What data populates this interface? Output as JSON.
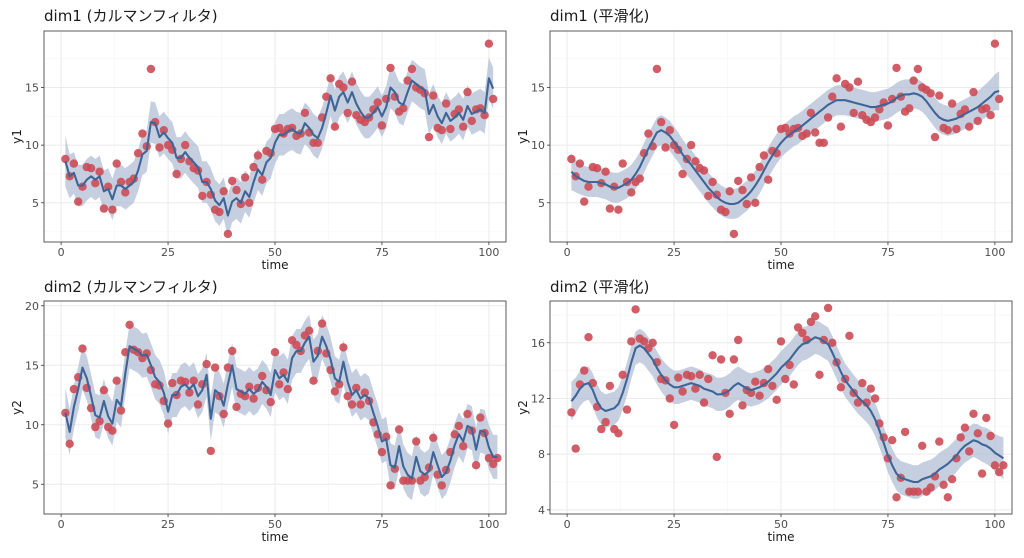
{
  "colors": {
    "band": "#a9b8d2",
    "line": "#3f6597",
    "points": "#cc4b55"
  },
  "chart_data": [
    {
      "type": "line",
      "title": "dim1 (カルマンフィルタ)",
      "xlabel": "time",
      "ylabel": "y1",
      "xlim": [
        -4,
        104
      ],
      "ylim": [
        1.6,
        19.9
      ],
      "xticks": [
        0,
        25,
        50,
        75,
        100
      ],
      "yticks": [
        5,
        10,
        15
      ],
      "x_start": 1,
      "observed": [
        8.8,
        7.3,
        8.4,
        5.1,
        6.4,
        8.1,
        8.0,
        6.7,
        7.7,
        4.5,
        6.4,
        4.4,
        8.4,
        6.8,
        5.9,
        6.8,
        7.1,
        9.3,
        11.0,
        9.9,
        16.6,
        12.0,
        9.8,
        11.3,
        10.0,
        9.6,
        7.5,
        8.8,
        10.0,
        8.6,
        8.0,
        7.8,
        5.6,
        6.8,
        5.7,
        4.4,
        4.2,
        6.0,
        2.3,
        6.9,
        6.1,
        4.9,
        7.2,
        5.0,
        8.1,
        9.1,
        7.0,
        9.5,
        9.3,
        11.4,
        11.5,
        11.0,
        11.4,
        11.5,
        10.8,
        11.0,
        12.8,
        11.1,
        10.2,
        10.2,
        12.4,
        14.2,
        15.8,
        11.6,
        15.3,
        15.0,
        12.8,
        15.5,
        12.6,
        12.2,
        12.0,
        12.4,
        13.1,
        13.7,
        11.7,
        14.0,
        16.7,
        14.2,
        12.9,
        13.2,
        15.6,
        16.6,
        15.0,
        14.8,
        14.5,
        10.7,
        14.3,
        11.5,
        11.3,
        13.6,
        11.4,
        12.7,
        13.1,
        11.6,
        14.6,
        12.1,
        13.1,
        13.2,
        12.6,
        18.8,
        14.0
      ],
      "filtered": [
        8.6,
        7.3,
        7.6,
        6.5,
        6.5,
        7.0,
        7.3,
        7.0,
        7.3,
        6.0,
        6.2,
        5.3,
        6.5,
        6.5,
        6.2,
        6.5,
        6.8,
        7.8,
        9.2,
        9.5,
        12.0,
        11.9,
        10.7,
        11.1,
        10.6,
        10.2,
        8.9,
        8.9,
        9.4,
        8.9,
        8.5,
        8.1,
        6.8,
        6.8,
        6.2,
        5.2,
        4.8,
        5.4,
        3.9,
        5.1,
        5.4,
        5.0,
        6.0,
        5.5,
        6.8,
        7.9,
        7.4,
        8.5,
        8.9,
        10.2,
        10.9,
        10.9,
        11.2,
        11.4,
        11.1,
        11.0,
        11.9,
        11.5,
        10.9,
        10.6,
        11.5,
        12.8,
        14.3,
        13.0,
        14.2,
        14.6,
        13.7,
        14.6,
        13.6,
        12.9,
        12.4,
        12.4,
        12.8,
        13.3,
        12.5,
        13.3,
        15.0,
        14.6,
        13.7,
        13.5,
        14.6,
        15.6,
        15.3,
        15.0,
        14.8,
        12.7,
        13.5,
        12.5,
        11.9,
        12.8,
        12.1,
        12.4,
        12.8,
        12.2,
        13.4,
        12.7,
        12.9,
        13.1,
        12.8,
        15.8,
        14.9
      ],
      "band_halfwidth": [
        2.2,
        1.9,
        1.8,
        1.8,
        1.8,
        1.8,
        1.8,
        1.8,
        1.8,
        1.8,
        1.8,
        1.8,
        1.8,
        1.8,
        1.8,
        1.8,
        1.8,
        1.8,
        1.8,
        1.8,
        1.8,
        1.8,
        1.8,
        1.8,
        1.8,
        1.8,
        1.8,
        1.8,
        1.8,
        1.8,
        1.8,
        1.8,
        1.8,
        1.8,
        1.8,
        1.8,
        1.8,
        1.8,
        1.8,
        1.8,
        1.8,
        1.8,
        1.8,
        1.8,
        1.8,
        1.8,
        1.8,
        1.8,
        1.8,
        1.8,
        1.8,
        1.8,
        1.8,
        1.8,
        1.8,
        1.8,
        1.8,
        1.8,
        1.8,
        1.8,
        1.8,
        1.8,
        1.8,
        1.8,
        1.8,
        1.8,
        1.8,
        1.8,
        1.8,
        1.8,
        1.8,
        1.8,
        1.8,
        1.8,
        1.8,
        1.8,
        1.8,
        1.8,
        1.8,
        1.8,
        1.8,
        1.8,
        1.8,
        1.8,
        1.8,
        1.8,
        1.8,
        1.8,
        1.8,
        1.8,
        1.8,
        1.8,
        1.8,
        1.8,
        1.8,
        1.8,
        1.8,
        1.8,
        1.8,
        1.8,
        1.8
      ]
    },
    {
      "type": "line",
      "title": "dim1 (平滑化)",
      "xlabel": "time",
      "ylabel": "y1",
      "xlim": [
        -4,
        104
      ],
      "ylim": [
        1.6,
        19.9
      ],
      "xticks": [
        0,
        25,
        50,
        75,
        100
      ],
      "yticks": [
        5,
        10,
        15
      ],
      "x_start": 1,
      "observed": [
        8.8,
        7.3,
        8.4,
        5.1,
        6.4,
        8.1,
        8.0,
        6.7,
        7.7,
        4.5,
        6.4,
        4.4,
        8.4,
        6.8,
        5.9,
        6.8,
        7.1,
        9.3,
        11.0,
        9.9,
        16.6,
        12.0,
        9.8,
        11.3,
        10.0,
        9.6,
        7.5,
        8.8,
        10.0,
        8.6,
        8.0,
        7.8,
        5.6,
        6.8,
        5.7,
        4.4,
        4.2,
        6.0,
        2.3,
        6.9,
        6.1,
        4.9,
        7.2,
        5.0,
        8.1,
        9.1,
        7.0,
        9.5,
        9.3,
        11.4,
        11.5,
        11.0,
        11.4,
        11.5,
        10.8,
        11.0,
        12.8,
        11.1,
        10.2,
        10.2,
        12.4,
        14.2,
        15.8,
        11.6,
        15.3,
        15.0,
        12.8,
        15.5,
        12.6,
        12.2,
        12.0,
        12.4,
        13.1,
        13.7,
        11.7,
        14.0,
        16.7,
        14.2,
        12.9,
        13.2,
        15.6,
        16.6,
        15.0,
        14.8,
        14.5,
        10.7,
        14.3,
        11.5,
        11.3,
        13.6,
        11.4,
        12.7,
        13.1,
        11.6,
        14.6,
        12.1,
        13.1,
        13.2,
        12.6,
        18.8,
        14.0
      ],
      "smoothed": [
        7.7,
        7.3,
        7.1,
        6.9,
        6.8,
        6.8,
        6.8,
        6.7,
        6.6,
        6.4,
        6.3,
        6.3,
        6.5,
        6.7,
        7.0,
        7.5,
        8.1,
        8.9,
        9.7,
        10.4,
        11.1,
        11.3,
        11.1,
        10.8,
        10.3,
        9.8,
        9.2,
        8.7,
        8.3,
        7.8,
        7.3,
        6.8,
        6.3,
        5.9,
        5.5,
        5.2,
        5.0,
        4.9,
        4.9,
        5.0,
        5.3,
        5.6,
        6.0,
        6.5,
        7.1,
        7.8,
        8.5,
        9.1,
        9.7,
        10.2,
        10.6,
        10.9,
        11.2,
        11.4,
        11.7,
        12.0,
        12.3,
        12.6,
        12.9,
        13.2,
        13.5,
        13.7,
        13.9,
        13.9,
        13.9,
        13.8,
        13.7,
        13.6,
        13.5,
        13.4,
        13.3,
        13.3,
        13.4,
        13.5,
        13.6,
        13.8,
        14.1,
        14.3,
        14.4,
        14.4,
        14.5,
        14.4,
        14.2,
        13.8,
        13.3,
        12.8,
        12.4,
        12.2,
        12.1,
        12.2,
        12.3,
        12.5,
        12.7,
        12.9,
        13.1,
        13.3,
        13.6,
        13.9,
        14.2,
        14.6,
        14.7
      ],
      "band_halfwidth": [
        1.6,
        1.4,
        1.35,
        1.3,
        1.3,
        1.3,
        1.3,
        1.3,
        1.3,
        1.3,
        1.3,
        1.3,
        1.3,
        1.3,
        1.3,
        1.3,
        1.3,
        1.3,
        1.3,
        1.3,
        1.3,
        1.3,
        1.3,
        1.3,
        1.3,
        1.3,
        1.3,
        1.3,
        1.3,
        1.3,
        1.3,
        1.3,
        1.3,
        1.3,
        1.3,
        1.3,
        1.3,
        1.3,
        1.3,
        1.3,
        1.3,
        1.3,
        1.3,
        1.3,
        1.3,
        1.3,
        1.3,
        1.3,
        1.3,
        1.3,
        1.3,
        1.3,
        1.3,
        1.3,
        1.3,
        1.3,
        1.3,
        1.3,
        1.3,
        1.3,
        1.3,
        1.3,
        1.3,
        1.3,
        1.3,
        1.3,
        1.3,
        1.3,
        1.3,
        1.3,
        1.3,
        1.3,
        1.3,
        1.3,
        1.3,
        1.3,
        1.3,
        1.3,
        1.3,
        1.3,
        1.3,
        1.3,
        1.3,
        1.3,
        1.3,
        1.3,
        1.3,
        1.3,
        1.3,
        1.3,
        1.3,
        1.3,
        1.3,
        1.3,
        1.35,
        1.4,
        1.4,
        1.45,
        1.5,
        1.55,
        1.7
      ]
    },
    {
      "type": "line",
      "title": "dim2 (カルマンフィルタ)",
      "xlabel": "time",
      "ylabel": "y2",
      "xlim": [
        -4,
        104
      ],
      "ylim": [
        2.5,
        20.4
      ],
      "xticks": [
        0,
        25,
        50,
        75,
        100
      ],
      "yticks": [
        5,
        10,
        15,
        20
      ],
      "x_start": 1,
      "observed": [
        11.0,
        8.4,
        13.0,
        14.0,
        16.4,
        13.1,
        11.4,
        9.8,
        10.3,
        12.9,
        9.8,
        9.5,
        13.7,
        11.2,
        16.1,
        18.4,
        16.3,
        16.1,
        15.6,
        16.0,
        14.6,
        13.4,
        13.3,
        12.0,
        10.1,
        13.5,
        12.5,
        13.7,
        13.6,
        12.7,
        13.7,
        11.7,
        13.4,
        15.1,
        7.8,
        14.8,
        12.4,
        10.9,
        14.8,
        16.2,
        11.5,
        12.6,
        12.4,
        13.2,
        12.2,
        13.1,
        14.1,
        12.9,
        11.9,
        16.1,
        13.4,
        14.4,
        13.0,
        17.1,
        16.7,
        16.2,
        17.5,
        17.9,
        13.7,
        16.2,
        18.5,
        16.0,
        14.6,
        12.8,
        13.4,
        16.5,
        12.4,
        11.7,
        13.1,
        11.7,
        12.7,
        12.0,
        10.2,
        9.2,
        7.7,
        9.0,
        4.9,
        6.3,
        9.6,
        5.3,
        5.3,
        5.3,
        8.6,
        5.3,
        5.6,
        6.4,
        8.9,
        5.8,
        4.9,
        6.2,
        7.7,
        9.2,
        9.9,
        8.2,
        10.9,
        9.5,
        6.6,
        10.6,
        9.3,
        7.2,
        6.7,
        7.2
      ],
      "filtered": [
        11.0,
        9.4,
        11.5,
        13.0,
        14.8,
        13.9,
        12.4,
        10.8,
        10.6,
        12.0,
        10.7,
        10.1,
        12.1,
        11.6,
        14.3,
        16.6,
        16.4,
        16.2,
        15.8,
        15.9,
        15.0,
        14.0,
        13.6,
        12.7,
        11.1,
        12.5,
        12.5,
        13.2,
        13.4,
        13.0,
        13.4,
        12.4,
        12.9,
        14.2,
        10.5,
        12.9,
        12.6,
        11.6,
        13.4,
        15.0,
        13.0,
        12.8,
        12.6,
        13.0,
        12.6,
        12.9,
        13.6,
        13.2,
        12.5,
        14.6,
        13.9,
        14.2,
        13.6,
        15.6,
        16.2,
        16.2,
        16.9,
        17.4,
        15.3,
        15.8,
        17.4,
        16.6,
        15.5,
        13.9,
        13.6,
        15.3,
        13.6,
        12.5,
        12.9,
        12.2,
        12.5,
        12.2,
        11.0,
        9.9,
        8.6,
        8.8,
        6.6,
        6.4,
        8.2,
        6.5,
        5.8,
        5.5,
        7.3,
        6.1,
        5.8,
        6.1,
        7.7,
        6.6,
        5.6,
        6.0,
        7.0,
        8.3,
        9.2,
        8.6,
        9.9,
        9.7,
        7.9,
        9.5,
        9.4,
        8.1,
        7.3,
        7.3
      ],
      "band_halfwidth": [
        2.1,
        1.9,
        1.85,
        1.85,
        1.85,
        1.85,
        1.85,
        1.85,
        1.85,
        1.85,
        1.85,
        1.85,
        1.85,
        1.85,
        1.85,
        1.85,
        1.85,
        1.85,
        1.85,
        1.85,
        1.85,
        1.85,
        1.85,
        1.85,
        1.85,
        1.85,
        1.85,
        1.85,
        1.85,
        1.85,
        1.85,
        1.85,
        1.85,
        1.85,
        1.85,
        1.85,
        1.85,
        1.85,
        1.85,
        1.85,
        1.85,
        1.85,
        1.85,
        1.85,
        1.85,
        1.85,
        1.85,
        1.85,
        1.85,
        1.85,
        1.85,
        1.85,
        1.85,
        1.85,
        1.85,
        1.85,
        1.85,
        1.85,
        1.85,
        1.85,
        1.85,
        1.85,
        1.85,
        1.85,
        1.85,
        1.85,
        1.85,
        1.85,
        1.85,
        1.85,
        1.85,
        1.85,
        1.85,
        1.85,
        1.85,
        1.85,
        1.85,
        1.85,
        1.85,
        1.85,
        1.85,
        1.85,
        1.85,
        1.85,
        1.85,
        1.85,
        1.85,
        1.85,
        1.85,
        1.85,
        1.85,
        1.85,
        1.85,
        1.85,
        1.85,
        1.85,
        1.85,
        1.85,
        1.85,
        1.85,
        1.85,
        1.85
      ]
    },
    {
      "type": "line",
      "title": "dim2 (平滑化)",
      "xlabel": "time",
      "ylabel": "y2",
      "xlim": [
        -4,
        104
      ],
      "ylim": [
        3.7,
        19.0
      ],
      "xticks": [
        0,
        25,
        50,
        75,
        100
      ],
      "yticks": [
        4,
        8,
        12,
        16
      ],
      "x_start": 1,
      "observed": [
        11.0,
        8.4,
        13.0,
        14.0,
        16.4,
        13.1,
        11.4,
        9.8,
        10.3,
        12.9,
        9.8,
        9.5,
        13.7,
        11.2,
        16.1,
        18.4,
        16.3,
        16.1,
        15.6,
        16.0,
        14.6,
        13.4,
        13.3,
        12.0,
        10.1,
        13.5,
        12.5,
        13.7,
        13.6,
        12.7,
        13.7,
        11.7,
        13.4,
        15.1,
        7.8,
        14.8,
        12.4,
        10.9,
        14.8,
        16.2,
        11.5,
        12.6,
        12.4,
        13.2,
        12.2,
        13.1,
        14.1,
        12.9,
        11.9,
        16.1,
        13.4,
        14.4,
        13.0,
        17.1,
        16.7,
        16.2,
        17.5,
        17.9,
        13.7,
        16.2,
        18.5,
        16.0,
        14.6,
        12.8,
        13.4,
        16.5,
        12.4,
        11.7,
        13.1,
        11.7,
        12.7,
        12.0,
        10.2,
        9.2,
        7.7,
        9.0,
        4.9,
        6.3,
        9.6,
        5.3,
        5.3,
        5.3,
        8.6,
        5.3,
        5.6,
        6.4,
        8.9,
        5.8,
        4.9,
        6.2,
        7.7,
        9.2,
        9.9,
        8.2,
        10.9,
        9.5,
        6.6,
        10.6,
        9.3,
        7.2,
        6.7,
        7.2
      ],
      "smoothed": [
        11.8,
        12.2,
        12.7,
        13.0,
        13.1,
        12.6,
        11.8,
        11.3,
        11.1,
        11.2,
        11.3,
        11.6,
        12.4,
        13.4,
        14.6,
        15.6,
        15.8,
        15.6,
        15.2,
        14.8,
        14.2,
        13.7,
        13.3,
        13.0,
        12.8,
        12.8,
        12.9,
        13.0,
        13.1,
        13.0,
        12.9,
        12.7,
        12.6,
        12.5,
        12.3,
        12.3,
        12.4,
        12.6,
        12.9,
        13.1,
        12.9,
        12.7,
        12.6,
        12.7,
        12.8,
        13.0,
        13.2,
        13.5,
        13.8,
        14.2,
        14.5,
        14.8,
        15.2,
        15.6,
        15.9,
        16.0,
        16.2,
        16.4,
        16.3,
        16.1,
        15.9,
        15.3,
        14.6,
        13.9,
        13.3,
        12.9,
        12.5,
        12.1,
        11.8,
        11.5,
        11.1,
        10.5,
        9.7,
        8.8,
        7.9,
        7.2,
        6.6,
        6.3,
        6.2,
        6.1,
        6.0,
        6.0,
        6.2,
        6.3,
        6.4,
        6.6,
        6.9,
        7.1,
        7.3,
        7.6,
        7.9,
        8.3,
        8.6,
        8.8,
        9.0,
        8.9,
        8.7,
        8.6,
        8.4,
        8.1,
        7.9,
        7.7
      ],
      "band_halfwidth": [
        1.4,
        1.3,
        1.25,
        1.2,
        1.2,
        1.2,
        1.2,
        1.2,
        1.2,
        1.2,
        1.2,
        1.2,
        1.2,
        1.2,
        1.2,
        1.2,
        1.2,
        1.2,
        1.2,
        1.2,
        1.2,
        1.2,
        1.2,
        1.2,
        1.2,
        1.2,
        1.2,
        1.2,
        1.2,
        1.2,
        1.2,
        1.2,
        1.2,
        1.2,
        1.2,
        1.2,
        1.2,
        1.2,
        1.2,
        1.2,
        1.2,
        1.2,
        1.2,
        1.2,
        1.2,
        1.2,
        1.2,
        1.2,
        1.2,
        1.2,
        1.2,
        1.2,
        1.2,
        1.2,
        1.2,
        1.2,
        1.2,
        1.2,
        1.2,
        1.2,
        1.2,
        1.2,
        1.2,
        1.2,
        1.2,
        1.2,
        1.2,
        1.2,
        1.2,
        1.2,
        1.2,
        1.2,
        1.2,
        1.2,
        1.2,
        1.2,
        1.2,
        1.2,
        1.2,
        1.2,
        1.2,
        1.2,
        1.2,
        1.2,
        1.2,
        1.2,
        1.2,
        1.2,
        1.2,
        1.2,
        1.2,
        1.2,
        1.2,
        1.2,
        1.2,
        1.25,
        1.25,
        1.3,
        1.3,
        1.35,
        1.4,
        1.5
      ]
    }
  ]
}
